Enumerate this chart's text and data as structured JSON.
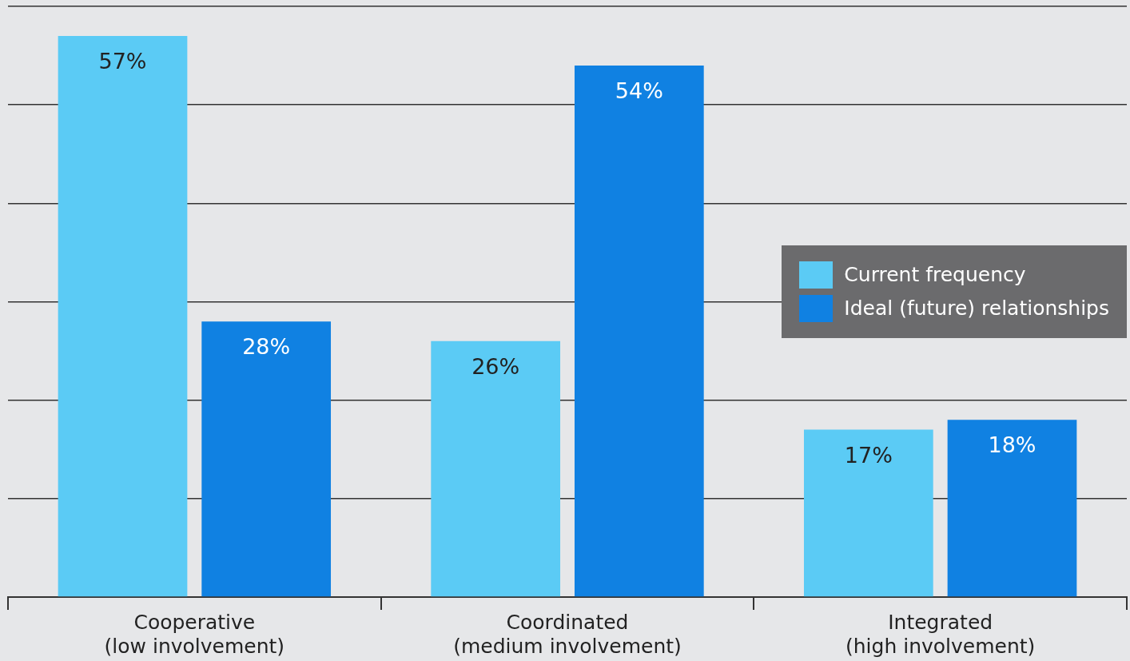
{
  "chart_data": {
    "type": "bar",
    "categories": [
      [
        "Cooperative",
        "(low involvement)"
      ],
      [
        "Coordinated",
        "(medium involvement)"
      ],
      [
        "Integrated",
        "(high involvement)"
      ]
    ],
    "series": [
      {
        "name": "Current frequency",
        "color": "#5bcbf5",
        "values": [
          57,
          26,
          17
        ],
        "value_labels": [
          "57%",
          "26%",
          "17%"
        ]
      },
      {
        "name": "Ideal (future) relationships",
        "color": "#1081e2",
        "values": [
          28,
          54,
          18
        ],
        "value_labels": [
          "28%",
          "54%",
          "18%"
        ]
      }
    ],
    "ylim": [
      0,
      60
    ],
    "yticks": [
      {
        "value": 0,
        "label": null
      },
      {
        "value": 10,
        "label": null
      },
      {
        "value": 20,
        "label": null
      },
      {
        "value": 30,
        "label": null
      },
      {
        "value": 40,
        "label": null
      },
      {
        "value": 50,
        "label": null
      },
      {
        "value": 60,
        "label": null
      }
    ],
    "grid": "y",
    "tick_labels": "x",
    "legend": "right"
  }
}
